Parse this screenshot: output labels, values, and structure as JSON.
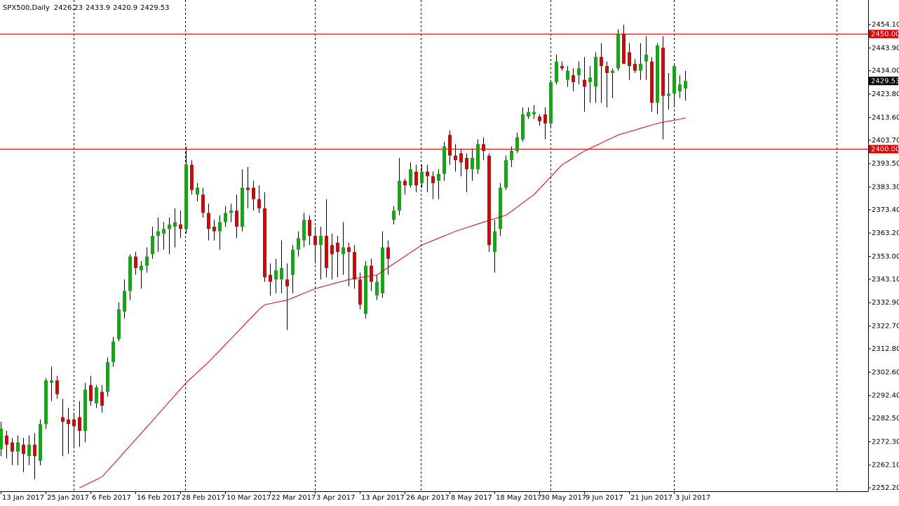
{
  "chart_data": {
    "type": "candlestick",
    "title": "SPX500,Daily",
    "up_color": "#00b400",
    "down_color": "#e00000",
    "wick_color": "#000000",
    "ylim": [
      2250.7,
      2464.8
    ],
    "yticks": [
      {
        "value": 2454.1,
        "label": "2454.10"
      },
      {
        "value": 2443.9,
        "label": "2443.90"
      },
      {
        "value": 2434.0,
        "label": "2434.00"
      },
      {
        "value": 2423.8,
        "label": "2423.80"
      },
      {
        "value": 2413.6,
        "label": "2413.60"
      },
      {
        "value": 2403.7,
        "label": "2403.70"
      },
      {
        "value": 2393.5,
        "label": "2393.50"
      },
      {
        "value": 2383.3,
        "label": "2383.30"
      },
      {
        "value": 2373.4,
        "label": "2373.40"
      },
      {
        "value": 2363.2,
        "label": "2363.20"
      },
      {
        "value": 2353.0,
        "label": "2353.00"
      },
      {
        "value": 2343.1,
        "label": "2343.10"
      },
      {
        "value": 2332.9,
        "label": "2332.90"
      },
      {
        "value": 2322.7,
        "label": "2322.70"
      },
      {
        "value": 2312.8,
        "label": "2312.80"
      },
      {
        "value": 2302.6,
        "label": "2302.60"
      },
      {
        "value": 2292.4,
        "label": "2292.40"
      },
      {
        "value": 2282.5,
        "label": "2282.50"
      },
      {
        "value": 2272.3,
        "label": "2272.30"
      },
      {
        "value": 2262.1,
        "label": "2262.10"
      },
      {
        "value": 2252.2,
        "label": "2252.20"
      }
    ],
    "hlines": [
      {
        "value": 2450,
        "label": "2450.00",
        "color": "#e00000"
      },
      {
        "value": 2400,
        "label": "2400.00",
        "color": "#e00000"
      }
    ],
    "categories": [
      "13 Jan 2017",
      null,
      null,
      null,
      null,
      null,
      null,
      null,
      "25 Jan 2017",
      null,
      null,
      null,
      null,
      null,
      null,
      null,
      "6 Feb 2017",
      null,
      null,
      null,
      null,
      null,
      null,
      null,
      "16 Feb 2017",
      null,
      null,
      null,
      null,
      null,
      null,
      null,
      "28 Feb 2017",
      null,
      null,
      null,
      null,
      null,
      null,
      null,
      "10 Mar 2017",
      null,
      null,
      null,
      null,
      null,
      null,
      null,
      "22 Mar 2017",
      null,
      null,
      null,
      null,
      null,
      null,
      null,
      "3 Apr 2017",
      null,
      null,
      null,
      null,
      null,
      null,
      null,
      "13 Apr 2017",
      null,
      null,
      null,
      null,
      null,
      null,
      null,
      "26 Apr 2017",
      null,
      null,
      null,
      null,
      null,
      null,
      null,
      "8 May 2017",
      null,
      null,
      null,
      null,
      null,
      null,
      null,
      "18 May 2017",
      null,
      null,
      null,
      null,
      null,
      null,
      null,
      "30 May 2017",
      null,
      null,
      null,
      null,
      null,
      null,
      null,
      "9 Jun 2017",
      null,
      null,
      null,
      null,
      null,
      null,
      null,
      "21 Jun 2017",
      null,
      null,
      null,
      null,
      null,
      null,
      null,
      "3 Jul 2017",
      null,
      null
    ],
    "open": [
      2269,
      2275,
      2272,
      2268,
      2271,
      2266,
      2271,
      2264,
      2280,
      2298,
      2299,
      2283,
      2282,
      2282,
      2283,
      2277,
      2297,
      2289,
      2294,
      2294,
      2307,
      2317,
      2329,
      2338,
      2353,
      2347,
      2349,
      2354,
      2362,
      2363,
      2365,
      2366,
      2367,
      2365,
      2393,
      2380,
      2380,
      2372,
      2366,
      2364,
      2368,
      2372,
      2373,
      2366,
      2383,
      2383,
      2378,
      2374,
      2345,
      2343,
      2343,
      2343,
      2345,
      2356,
      2360,
      2369,
      2362,
      2358,
      2362,
      2358,
      2359,
      2354,
      2357,
      2355,
      2343,
      2328,
      2349,
      2336,
      2337,
      2357,
      2369,
      2373,
      2386,
      2384,
      2390,
      2385,
      2390,
      2388,
      2386,
      2389,
      2406,
      2397,
      2398,
      2396,
      2391,
      2391,
      2402,
      2397,
      2355,
      2365,
      2383,
      2395,
      2399,
      2404,
      2414,
      2415,
      2414,
      2415,
      2411,
      2429,
      2436,
      2430,
      2432,
      2432,
      2430,
      2429,
      2427,
      2440,
      2436,
      2433,
      2435,
      2450,
      2442,
      2437,
      2434,
      2438,
      2438,
      2420,
      2444,
      2423,
      2424,
      2425,
      2426.23
    ],
    "high": [
      2281,
      2277,
      2274,
      2275,
      2274,
      2275,
      2276,
      2282,
      2300,
      2305,
      2301,
      2291,
      2287,
      2285,
      2290,
      2298,
      2301,
      2297,
      2297,
      2309,
      2318,
      2333,
      2343,
      2354,
      2355,
      2351,
      2357,
      2366,
      2370,
      2368,
      2370,
      2374,
      2373,
      2401,
      2395,
      2385,
      2383,
      2376,
      2369,
      2371,
      2375,
      2376,
      2380,
      2391,
      2392,
      2386,
      2384,
      2381,
      2350,
      2352,
      2360,
      2350,
      2358,
      2364,
      2372,
      2371,
      2366,
      2366,
      2378,
      2363,
      2362,
      2368,
      2359,
      2358,
      2346,
      2351,
      2352,
      2345,
      2364,
      2360,
      2375,
      2396,
      2387,
      2394,
      2393,
      2393,
      2393,
      2390,
      2391,
      2403,
      2408,
      2402,
      2400,
      2398,
      2400,
      2404,
      2405,
      2398,
      2369,
      2385,
      2397,
      2401,
      2407,
      2418,
      2418,
      2419,
      2415,
      2418,
      2430,
      2441,
      2438,
      2436,
      2435,
      2438,
      2440,
      2436,
      2442,
      2446,
      2438,
      2435,
      2452,
      2454,
      2446,
      2439,
      2446,
      2449,
      2440,
      2446,
      2449,
      2433,
      2437,
      2432,
      2433.9
    ],
    "low": [
      2266,
      2265,
      2262,
      2262,
      2259,
      2262,
      2256,
      2262,
      2278,
      2290,
      2291,
      2266,
      2267,
      2270,
      2270,
      2272,
      2288,
      2287,
      2285,
      2292,
      2305,
      2316,
      2326,
      2334,
      2345,
      2339,
      2346,
      2352,
      2355,
      2356,
      2354,
      2357,
      2361,
      2363,
      2380,
      2377,
      2370,
      2360,
      2360,
      2356,
      2366,
      2368,
      2361,
      2364,
      2374,
      2373,
      2372,
      2342,
      2336,
      2337,
      2337,
      2321,
      2337,
      2353,
      2357,
      2358,
      2350,
      2343,
      2344,
      2343,
      2344,
      2345,
      2340,
      2339,
      2330,
      2326,
      2338,
      2334,
      2335,
      2345,
      2367,
      2371,
      2380,
      2383,
      2381,
      2383,
      2381,
      2378,
      2378,
      2386,
      2393,
      2390,
      2388,
      2381,
      2386,
      2389,
      2395,
      2355,
      2346,
      2362,
      2382,
      2392,
      2398,
      2403,
      2413,
      2413,
      2410,
      2404,
      2409,
      2428,
      2434,
      2427,
      2425,
      2428,
      2416,
      2420,
      2420,
      2420,
      2418,
      2422,
      2434,
      2437,
      2430,
      2433,
      2430,
      2430,
      2416,
      2415,
      2404,
      2417,
      2419,
      2422,
      2420.9
    ],
    "close": [
      2278,
      2271,
      2268,
      2272,
      2267,
      2271,
      2266,
      2280,
      2299,
      2299,
      2293,
      2281,
      2280,
      2279,
      2277,
      2295,
      2290,
      2296,
      2288,
      2307,
      2316,
      2330,
      2338,
      2353,
      2348,
      2349,
      2353,
      2362,
      2364,
      2365,
      2367,
      2368,
      2365,
      2393,
      2382,
      2383,
      2372,
      2365,
      2364,
      2368,
      2372,
      2373,
      2366,
      2383,
      2382,
      2378,
      2374,
      2344,
      2342,
      2347,
      2348,
      2340,
      2356,
      2361,
      2369,
      2362,
      2358,
      2362,
      2348,
      2354,
      2355,
      2357,
      2355,
      2343,
      2332,
      2349,
      2342,
      2342,
      2357,
      2352,
      2373,
      2386,
      2384,
      2391,
      2384,
      2390,
      2388,
      2385,
      2389,
      2401,
      2397,
      2395,
      2394,
      2391,
      2396,
      2402,
      2399,
      2358,
      2364,
      2383,
      2395,
      2399,
      2405,
      2415,
      2416,
      2416,
      2412,
      2411,
      2429,
      2438,
      2435,
      2434,
      2429,
      2435,
      2427,
      2431,
      2440,
      2436,
      2433,
      2434,
      2450,
      2437,
      2436,
      2434,
      2437,
      2441,
      2420,
      2445,
      2423,
      2424,
      2436,
      2428,
      2429.53
    ],
    "ma": {
      "color": "#e00000",
      "values": [
        null,
        null,
        null,
        null,
        null,
        null,
        null,
        null,
        null,
        null,
        null,
        null,
        null,
        null,
        2252.2,
        2253.4,
        2254.6,
        2255.8,
        2257.0,
        2259.7,
        2262.4,
        2265.1,
        2267.9,
        2270.6,
        2273.3,
        2276.0,
        2278.8,
        2281.5,
        2284.3,
        2287.0,
        2289.8,
        2292.5,
        2295.3,
        2298.0,
        2300.3,
        2302.5,
        2304.8,
        2307.0,
        2309.6,
        2312.1,
        2314.7,
        2317.2,
        2319.8,
        2322.3,
        2324.9,
        2327.4,
        2330.0,
        2332.0,
        2332.5,
        2333.0,
        2333.5,
        2334.0,
        2335.0,
        2336.0,
        2337.0,
        2338.0,
        2339.0,
        2339.7,
        2340.3,
        2341.0,
        2341.7,
        2342.3,
        2343.0,
        2343.4,
        2343.8,
        2344.2,
        2344.6,
        2345.0,
        2346.6,
        2348.3,
        2349.9,
        2351.5,
        2353.1,
        2354.8,
        2356.4,
        2358.0,
        2359.0,
        2360.0,
        2361.0,
        2362.0,
        2363.0,
        2364.0,
        2364.8,
        2365.6,
        2366.4,
        2367.2,
        2368.0,
        2368.8,
        2369.5,
        2370.3,
        2371.0,
        2372.8,
        2374.6,
        2376.4,
        2378.2,
        2380.0,
        2382.6,
        2385.2,
        2387.8,
        2390.4,
        2393.0,
        2394.5,
        2396.0,
        2397.5,
        2399.0,
        2400.2,
        2401.3,
        2402.5,
        2403.7,
        2404.8,
        2406.0,
        2406.7,
        2407.4,
        2408.1,
        2408.9,
        2409.6,
        2410.3,
        2411.0,
        2411.5,
        2412.0,
        2412.4,
        2412.9,
        2413.4
      ]
    }
  }
}
